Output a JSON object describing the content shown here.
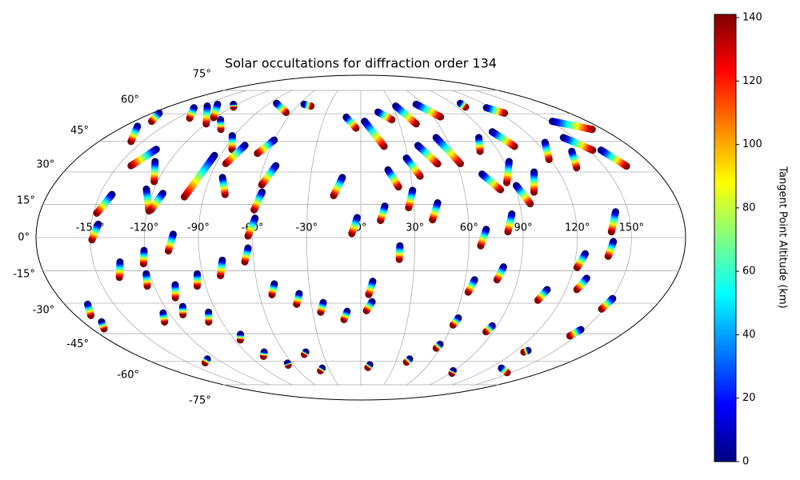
{
  "chart_data": {
    "type": "scatter",
    "projection": "mollweide",
    "title": "Solar occultations for diffraction order 134",
    "xlim": [
      -180,
      180
    ],
    "ylim": [
      -90,
      90
    ],
    "xticks": [
      {
        "value": -150,
        "label": "-150°"
      },
      {
        "value": -120,
        "label": "-120°"
      },
      {
        "value": -90,
        "label": "-90°"
      },
      {
        "value": -60,
        "label": "-60°"
      },
      {
        "value": -30,
        "label": "-30°"
      },
      {
        "value": 0,
        "label": "0°"
      },
      {
        "value": 30,
        "label": "30°"
      },
      {
        "value": 60,
        "label": "60°"
      },
      {
        "value": 90,
        "label": "90°"
      },
      {
        "value": 120,
        "label": "120°"
      },
      {
        "value": 150,
        "label": "150°"
      }
    ],
    "yticks": [
      {
        "value": -75,
        "label": "-75°"
      },
      {
        "value": -60,
        "label": "-60°"
      },
      {
        "value": -45,
        "label": "-45°"
      },
      {
        "value": -30,
        "label": "-30°"
      },
      {
        "value": -15,
        "label": "-15°"
      },
      {
        "value": 0,
        "label": "0°"
      },
      {
        "value": 15,
        "label": "15°"
      },
      {
        "value": 30,
        "label": "30°"
      },
      {
        "value": 45,
        "label": "45°"
      },
      {
        "value": 60,
        "label": "60°"
      },
      {
        "value": 75,
        "label": "75°"
      }
    ],
    "grid": true,
    "colorbar": {
      "label": "Tangent Point Altitude (km)",
      "cmap": "jet",
      "lim": [
        0,
        141
      ],
      "ticks": [
        0,
        20,
        40,
        60,
        80,
        100,
        120,
        140
      ]
    },
    "tracks": [
      {
        "x": [
          -143,
          -148
        ],
        "y": [
          19.5,
          11
        ],
        "c": [
          0,
          140
        ]
      },
      {
        "x": [
          -146,
          -149
        ],
        "y": [
          6,
          -1
        ],
        "c": [
          0,
          140
        ]
      },
      {
        "x": [
          -170,
          -158
        ],
        "y": [
          53,
          45
        ],
        "c": [
          0,
          140
        ]
      },
      {
        "x": [
          -174,
          -166
        ],
        "y": [
          60.4,
          55.7
        ],
        "c": [
          0,
          140
        ]
      },
      {
        "x": [
          -135,
          -142
        ],
        "y": [
          41,
          33
        ],
        "c": [
          0,
          140
        ]
      },
      {
        "x": [
          -129,
          -122
        ],
        "y": [
          35,
          25.5
        ],
        "c": [
          0,
          140
        ]
      },
      {
        "x": [
          -124.5,
          -119
        ],
        "y": [
          22,
          12
        ],
        "c": [
          0,
          140
        ]
      },
      {
        "x": [
          -114,
          -118
        ],
        "y": [
          20,
          12.5
        ],
        "c": [
          0,
          140
        ]
      },
      {
        "x": [
          -104,
          -107
        ],
        "y": [
          1.5,
          -6
        ],
        "c": [
          0,
          140
        ]
      },
      {
        "x": [
          -94,
          -101
        ],
        "y": [
          38,
          18.4
        ],
        "c": [
          0,
          140
        ]
      },
      {
        "x": [
          -82.5,
          -78
        ],
        "y": [
          27.4,
          19.5
        ],
        "c": [
          0,
          140
        ]
      },
      {
        "x": [
          -91.5,
          -85
        ],
        "y": [
          48,
          41
        ],
        "c": [
          0,
          140
        ]
      },
      {
        "x": [
          -78,
          -84
        ],
        "y": [
          43,
          34
        ],
        "c": [
          0,
          140
        ]
      },
      {
        "x": [
          -113,
          -104
        ],
        "y": [
          56.6,
          51.3
        ],
        "c": [
          0,
          140
        ]
      },
      {
        "x": [
          -59,
          -62.5
        ],
        "y": [
          8.7,
          0.7
        ],
        "c": [
          0,
          140
        ]
      },
      {
        "x": [
          -57,
          -60
        ],
        "y": [
          20.6,
          12.5
        ],
        "c": [
          0,
          140
        ]
      },
      {
        "x": [
          -52.5,
          -58
        ],
        "y": [
          33,
          24
        ],
        "c": [
          0,
          140
        ]
      },
      {
        "x": [
          -60,
          -67
        ],
        "y": [
          45.7,
          39
        ],
        "c": [
          0,
          140
        ]
      },
      {
        "x": [
          -11,
          -15.6
        ],
        "y": [
          27.4,
          19
        ],
        "c": [
          0,
          140
        ]
      },
      {
        "x": [
          -2,
          -5
        ],
        "y": [
          9,
          1.8
        ],
        "c": [
          0,
          140
        ]
      },
      {
        "x": [
          -12,
          -3.6
        ],
        "y": [
          58,
          52
        ],
        "c": [
          0,
          140
        ]
      },
      {
        "x": [
          3,
          15.6
        ],
        "y": [
          55.7,
          42.5
        ],
        "c": [
          0,
          140
        ]
      },
      {
        "x": [
          15,
          25
        ],
        "y": [
          61,
          56.6
        ],
        "c": [
          0,
          140
        ]
      },
      {
        "x": [
          16.6,
          22
        ],
        "y": [
          31,
          23
        ],
        "c": [
          0,
          140
        ]
      },
      {
        "x": [
          13.6,
          11
        ],
        "y": [
          14.2,
          7.7
        ],
        "c": [
          0,
          140
        ]
      },
      {
        "x": [
          30,
          27
        ],
        "y": [
          21.4,
          13.5
        ],
        "c": [
          0,
          140
        ]
      },
      {
        "x": [
          38.4,
          47.8
        ],
        "y": [
          42.9,
          33.9
        ],
        "c": [
          0,
          140
        ]
      },
      {
        "x": [
          29,
          35.5
        ],
        "y": [
          36.7,
          28
        ],
        "c": [
          0,
          140
        ]
      },
      {
        "x": [
          43.6,
          40
        ],
        "y": [
          15.7,
          8
        ],
        "c": [
          0,
          140
        ]
      },
      {
        "x": [
          53,
          62
        ],
        "y": [
          47,
          34
        ],
        "c": [
          0,
          140
        ]
      },
      {
        "x": [
          83,
          78
        ],
        "y": [
          47,
          40
        ],
        "c": [
          0,
          140
        ]
      },
      {
        "x": [
          73,
          81
        ],
        "y": [
          29,
          21.7
        ],
        "c": [
          0,
          140
        ]
      },
      {
        "x": [
          69.6,
          66.5
        ],
        "y": [
          3.7,
          -3.7
        ],
        "c": [
          0,
          140
        ]
      },
      {
        "x": [
          96,
          103
        ],
        "y": [
          50,
          42.5
        ],
        "c": [
          0,
          140
        ]
      },
      {
        "x": [
          116,
          124
        ],
        "y": [
          63.6,
          60.4
        ],
        "c": [
          0,
          140
        ]
      },
      {
        "x": [
          84.6,
          81.6
        ],
        "y": [
          10.6,
          2.6
        ],
        "c": [
          0,
          140
        ]
      },
      {
        "x": [
          93,
          86
        ],
        "y": [
          35,
          25
        ],
        "c": [
          0,
          140
        ]
      },
      {
        "x": [
          91,
          96
        ],
        "y": [
          23.6,
          15.3
        ],
        "c": [
          0,
          140
        ]
      },
      {
        "x": [
          105,
          100
        ],
        "y": [
          30,
          20.6
        ],
        "c": [
          0,
          140
        ]
      },
      {
        "x": [
          126,
          119
        ],
        "y": [
          44.5,
          36
        ],
        "c": [
          0,
          140
        ]
      },
      {
        "x": [
          152,
          172
        ],
        "y": [
          55.7,
          51.3
        ],
        "c": [
          0,
          140
        ]
      },
      {
        "x": [
          142.5,
          152.5
        ],
        "y": [
          47,
          40.6
        ],
        "c": [
          0,
          140
        ]
      },
      {
        "x": [
          138,
          132.5
        ],
        "y": [
          40,
          32
        ],
        "c": [
          0,
          140
        ]
      },
      {
        "x": [
          158,
          164
        ],
        "y": [
          40.6,
          32.8
        ],
        "c": [
          0,
          140
        ]
      },
      {
        "x": [
          143,
          139
        ],
        "y": [
          11.6,
          2.6
        ],
        "c": [
          0,
          140
        ]
      },
      {
        "x": [
          140,
          138
        ],
        "y": [
          -1.8,
          -8.4
        ],
        "c": [
          0,
          140
        ]
      },
      {
        "x": [
          125,
          122
        ],
        "y": [
          -7.3,
          -13.5
        ],
        "c": [
          0,
          140
        ]
      },
      {
        "x": [
          -154,
          -140
        ],
        "y": [
          63.6,
          57.5
        ],
        "c": [
          0,
          140
        ]
      },
      {
        "x": [
          -145,
          -120
        ],
        "y": [
          64.6,
          54.3
        ],
        "c": [
          0,
          140
        ]
      },
      {
        "x": [
          -139,
          -121
        ],
        "y": [
          65.7,
          57.8
        ],
        "c": [
          0,
          140
        ]
      },
      {
        "x": [
          -123.6,
          -118.5
        ],
        "y": [
          65.7,
          64
        ],
        "c": [
          0,
          140
        ]
      },
      {
        "x": [
          -83,
          -65
        ],
        "y": [
          66.3,
          60.8
        ],
        "c": [
          0,
          140
        ]
      },
      {
        "x": [
          -55,
          -47
        ],
        "y": [
          65.7,
          64.6
        ],
        "c": [
          0,
          140
        ]
      },
      {
        "x": [
          98,
          97.5
        ],
        "y": [
          66.3,
          64
        ],
        "c": [
          0,
          140
        ]
      },
      {
        "x": [
          53.7,
          66
        ],
        "y": [
          65.7,
          58.2
        ],
        "c": [
          0,
          140
        ]
      },
      {
        "x": [
          33,
          43
        ],
        "y": [
          64.6,
          54.3
        ],
        "c": [
          0,
          140
        ]
      },
      {
        "x": [
          -135,
          -138
        ],
        "y": [
          -11,
          -18
        ],
        "c": [
          0,
          140
        ]
      },
      {
        "x": [
          -120.5,
          -122
        ],
        "y": [
          -5.8,
          -11.8
        ],
        "c": [
          0,
          140
        ]
      },
      {
        "x": [
          -122,
          -124
        ],
        "y": [
          -16.4,
          -22
        ],
        "c": [
          0,
          140
        ]
      },
      {
        "x": [
          -107.5,
          -110.6
        ],
        "y": [
          -21.4,
          -27.4
        ],
        "c": [
          0,
          140
        ]
      },
      {
        "x": [
          -93,
          -95
        ],
        "y": [
          -16.4,
          -22
        ],
        "c": [
          0,
          140
        ]
      },
      {
        "x": [
          -77.5,
          -80
        ],
        "y": [
          -10.2,
          -17.2
        ],
        "c": [
          0,
          140
        ]
      },
      {
        "x": [
          -62.6,
          -65
        ],
        "y": [
          -4.7,
          -10.9
        ],
        "c": [
          0,
          140
        ]
      },
      {
        "x": [
          -50,
          -52.6
        ],
        "y": [
          -21,
          -26
        ],
        "c": [
          0,
          140
        ]
      },
      {
        "x": [
          -36.4,
          -39
        ],
        "y": [
          -25.5,
          -30.5
        ],
        "c": [
          0,
          140
        ]
      },
      {
        "x": [
          -22.7,
          -25
        ],
        "y": [
          -29.7,
          -34.3
        ],
        "c": [
          0,
          140
        ]
      },
      {
        "x": [
          -8.5,
          -10.8
        ],
        "y": [
          -33.9,
          -37.9
        ],
        "c": [
          0,
          140
        ]
      },
      {
        "x": [
          6.8,
          3.5
        ],
        "y": [
          -29.3,
          -33.6
        ],
        "c": [
          0,
          140
        ]
      },
      {
        "x": [
          6.9,
          4.7
        ],
        "y": [
          -19.8,
          -25.9
        ],
        "c": [
          0,
          140
        ]
      },
      {
        "x": [
          21.7,
          21.5
        ],
        "y": [
          -3.7,
          -9.8
        ],
        "c": [
          0,
          140
        ]
      },
      {
        "x": [
          65.3,
          63.2
        ],
        "y": [
          -19.1,
          -24.8
        ],
        "c": [
          0,
          140
        ]
      },
      {
        "x": [
          80.4,
          78.2
        ],
        "y": [
          -13.2,
          -19.1
        ],
        "c": [
          0,
          140
        ]
      },
      {
        "x": [
          109,
          106.4
        ],
        "y": [
          -23.6,
          -28.6
        ],
        "c": [
          0,
          140
        ]
      },
      {
        "x": [
          129.3,
          126.4
        ],
        "y": [
          -18.4,
          -23.6
        ],
        "c": [
          0,
          140
        ]
      },
      {
        "x": [
          150.6,
          148.6
        ],
        "y": [
          -27.8,
          -32.8
        ],
        "c": [
          0,
          140
        ]
      },
      {
        "x": [
          -166,
          -170.5
        ],
        "y": [
          -30.5,
          -35.9
        ],
        "c": [
          0,
          140
        ]
      },
      {
        "x": [
          -168,
          -172
        ],
        "y": [
          -39,
          -42.5
        ],
        "c": [
          0,
          140
        ]
      },
      {
        "x": [
          -123.7,
          -127.3
        ],
        "y": [
          -34.7,
          -39.1
        ],
        "c": [
          0,
          140
        ]
      },
      {
        "x": [
          -109,
          -112
        ],
        "y": [
          -31.6,
          -35.5
        ],
        "c": [
          0,
          140
        ]
      },
      {
        "x": [
          -95,
          -98.7
        ],
        "y": [
          -34.3,
          -39.1
        ],
        "c": [
          0,
          140
        ]
      },
      {
        "x": [
          -83,
          -86
        ],
        "y": [
          -45.3,
          -48.2
        ],
        "c": [
          0,
          140
        ]
      },
      {
        "x": [
          62.2,
          60.7
        ],
        "y": [
          -37.1,
          -40.6
        ],
        "c": [
          0,
          140
        ]
      },
      {
        "x": [
          86.8,
          85.2
        ],
        "y": [
          -41,
          -44
        ],
        "c": [
          0,
          140
        ]
      },
      {
        "x": [
          148,
          145.5
        ],
        "y": [
          -42.9,
          -46.1
        ],
        "c": [
          0,
          140
        ]
      },
      {
        "x": [
          58.2,
          57.1
        ],
        "y": [
          -50.5,
          -52.6
        ],
        "c": [
          0,
          140
        ]
      },
      {
        "x": [
          129,
          127.4
        ],
        "y": [
          -53.9,
          -54.7
        ],
        "c": [
          0,
          140
        ]
      },
      {
        "x": [
          -75.5,
          -79
        ],
        "y": [
          -54.7,
          -57.1
        ],
        "c": [
          0,
          140
        ]
      },
      {
        "x": [
          -43,
          -45
        ],
        "y": [
          -54.7,
          -56
        ],
        "c": [
          0,
          140
        ]
      },
      {
        "x": [
          -64,
          -65
        ],
        "y": [
          -61,
          -62.2
        ],
        "c": [
          0,
          140
        ]
      },
      {
        "x": [
          8,
          6.6
        ],
        "y": [
          -62,
          -63.6
        ],
        "c": [
          0,
          140
        ]
      },
      {
        "x": [
          40.7,
          39.5
        ],
        "y": [
          -58.6,
          -60.4
        ],
        "c": [
          0,
          140
        ]
      },
      {
        "x": [
          -128,
          -135.4
        ],
        "y": [
          -58.6,
          -60.8
        ],
        "c": [
          0,
          140
        ]
      },
      {
        "x": [
          89.4,
          91.9
        ],
        "y": [
          -65.6,
          -67.2
        ],
        "c": [
          0,
          140
        ]
      },
      {
        "x": [
          131,
          146
        ],
        "y": [
          -64,
          -66.8
        ],
        "c": [
          0,
          140
        ]
      },
      {
        "x": [
          -36,
          -39
        ],
        "y": [
          -64,
          -65.6
        ],
        "c": [
          0,
          140
        ]
      }
    ]
  }
}
